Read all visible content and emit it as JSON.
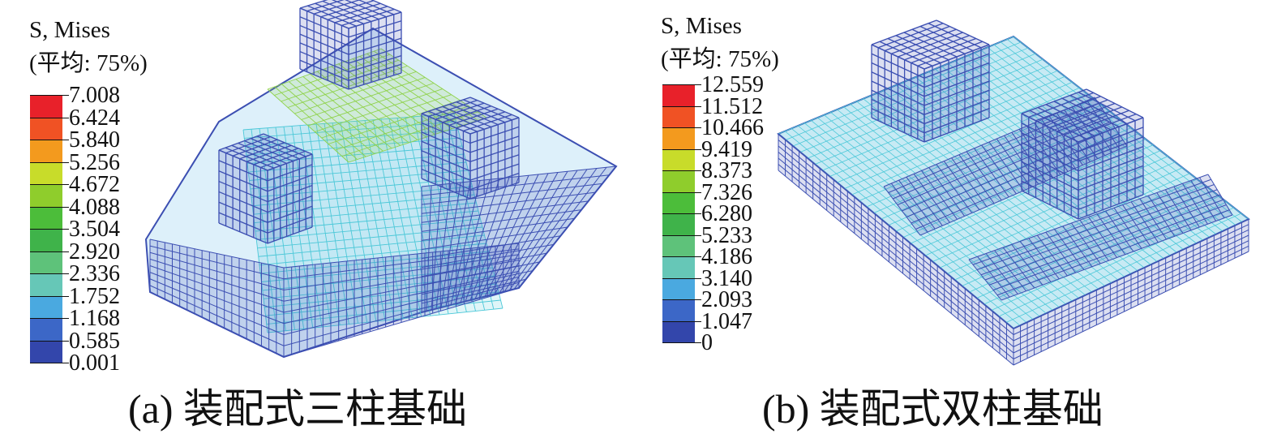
{
  "panels": [
    {
      "id": "a",
      "legend_title": "S, Mises",
      "legend_subtitle": "(平均: 75%)",
      "scale_labels": [
        "7.008",
        "6.424",
        "5.840",
        "5.256",
        "4.672",
        "4.088",
        "3.504",
        "2.920",
        "2.336",
        "1.752",
        "1.168",
        "0.585",
        "0.001"
      ],
      "caption": "(a) 装配式三柱基础"
    },
    {
      "id": "b",
      "legend_title": "S, Mises",
      "legend_subtitle": "(平均: 75%)",
      "scale_labels": [
        "12.559",
        "11.512",
        "10.466",
        "9.419",
        "8.373",
        "7.326",
        "6.280",
        "5.233",
        "4.186",
        "3.140",
        "2.093",
        "1.047",
        "0"
      ],
      "caption": "(b) 装配式双柱基础"
    }
  ],
  "colors": {
    "scale": [
      "#e8212a",
      "#f05224",
      "#f39a1e",
      "#c8dc2a",
      "#8fcd2c",
      "#4cbd3a",
      "#3fb34a",
      "#5ec27a",
      "#66c7b7",
      "#4aa9e0",
      "#3c67c7",
      "#3346ab"
    ],
    "frame_low": "#3c4fb2",
    "frame_mid": "#4cc8d8",
    "frame_high": "#8fd24a"
  }
}
